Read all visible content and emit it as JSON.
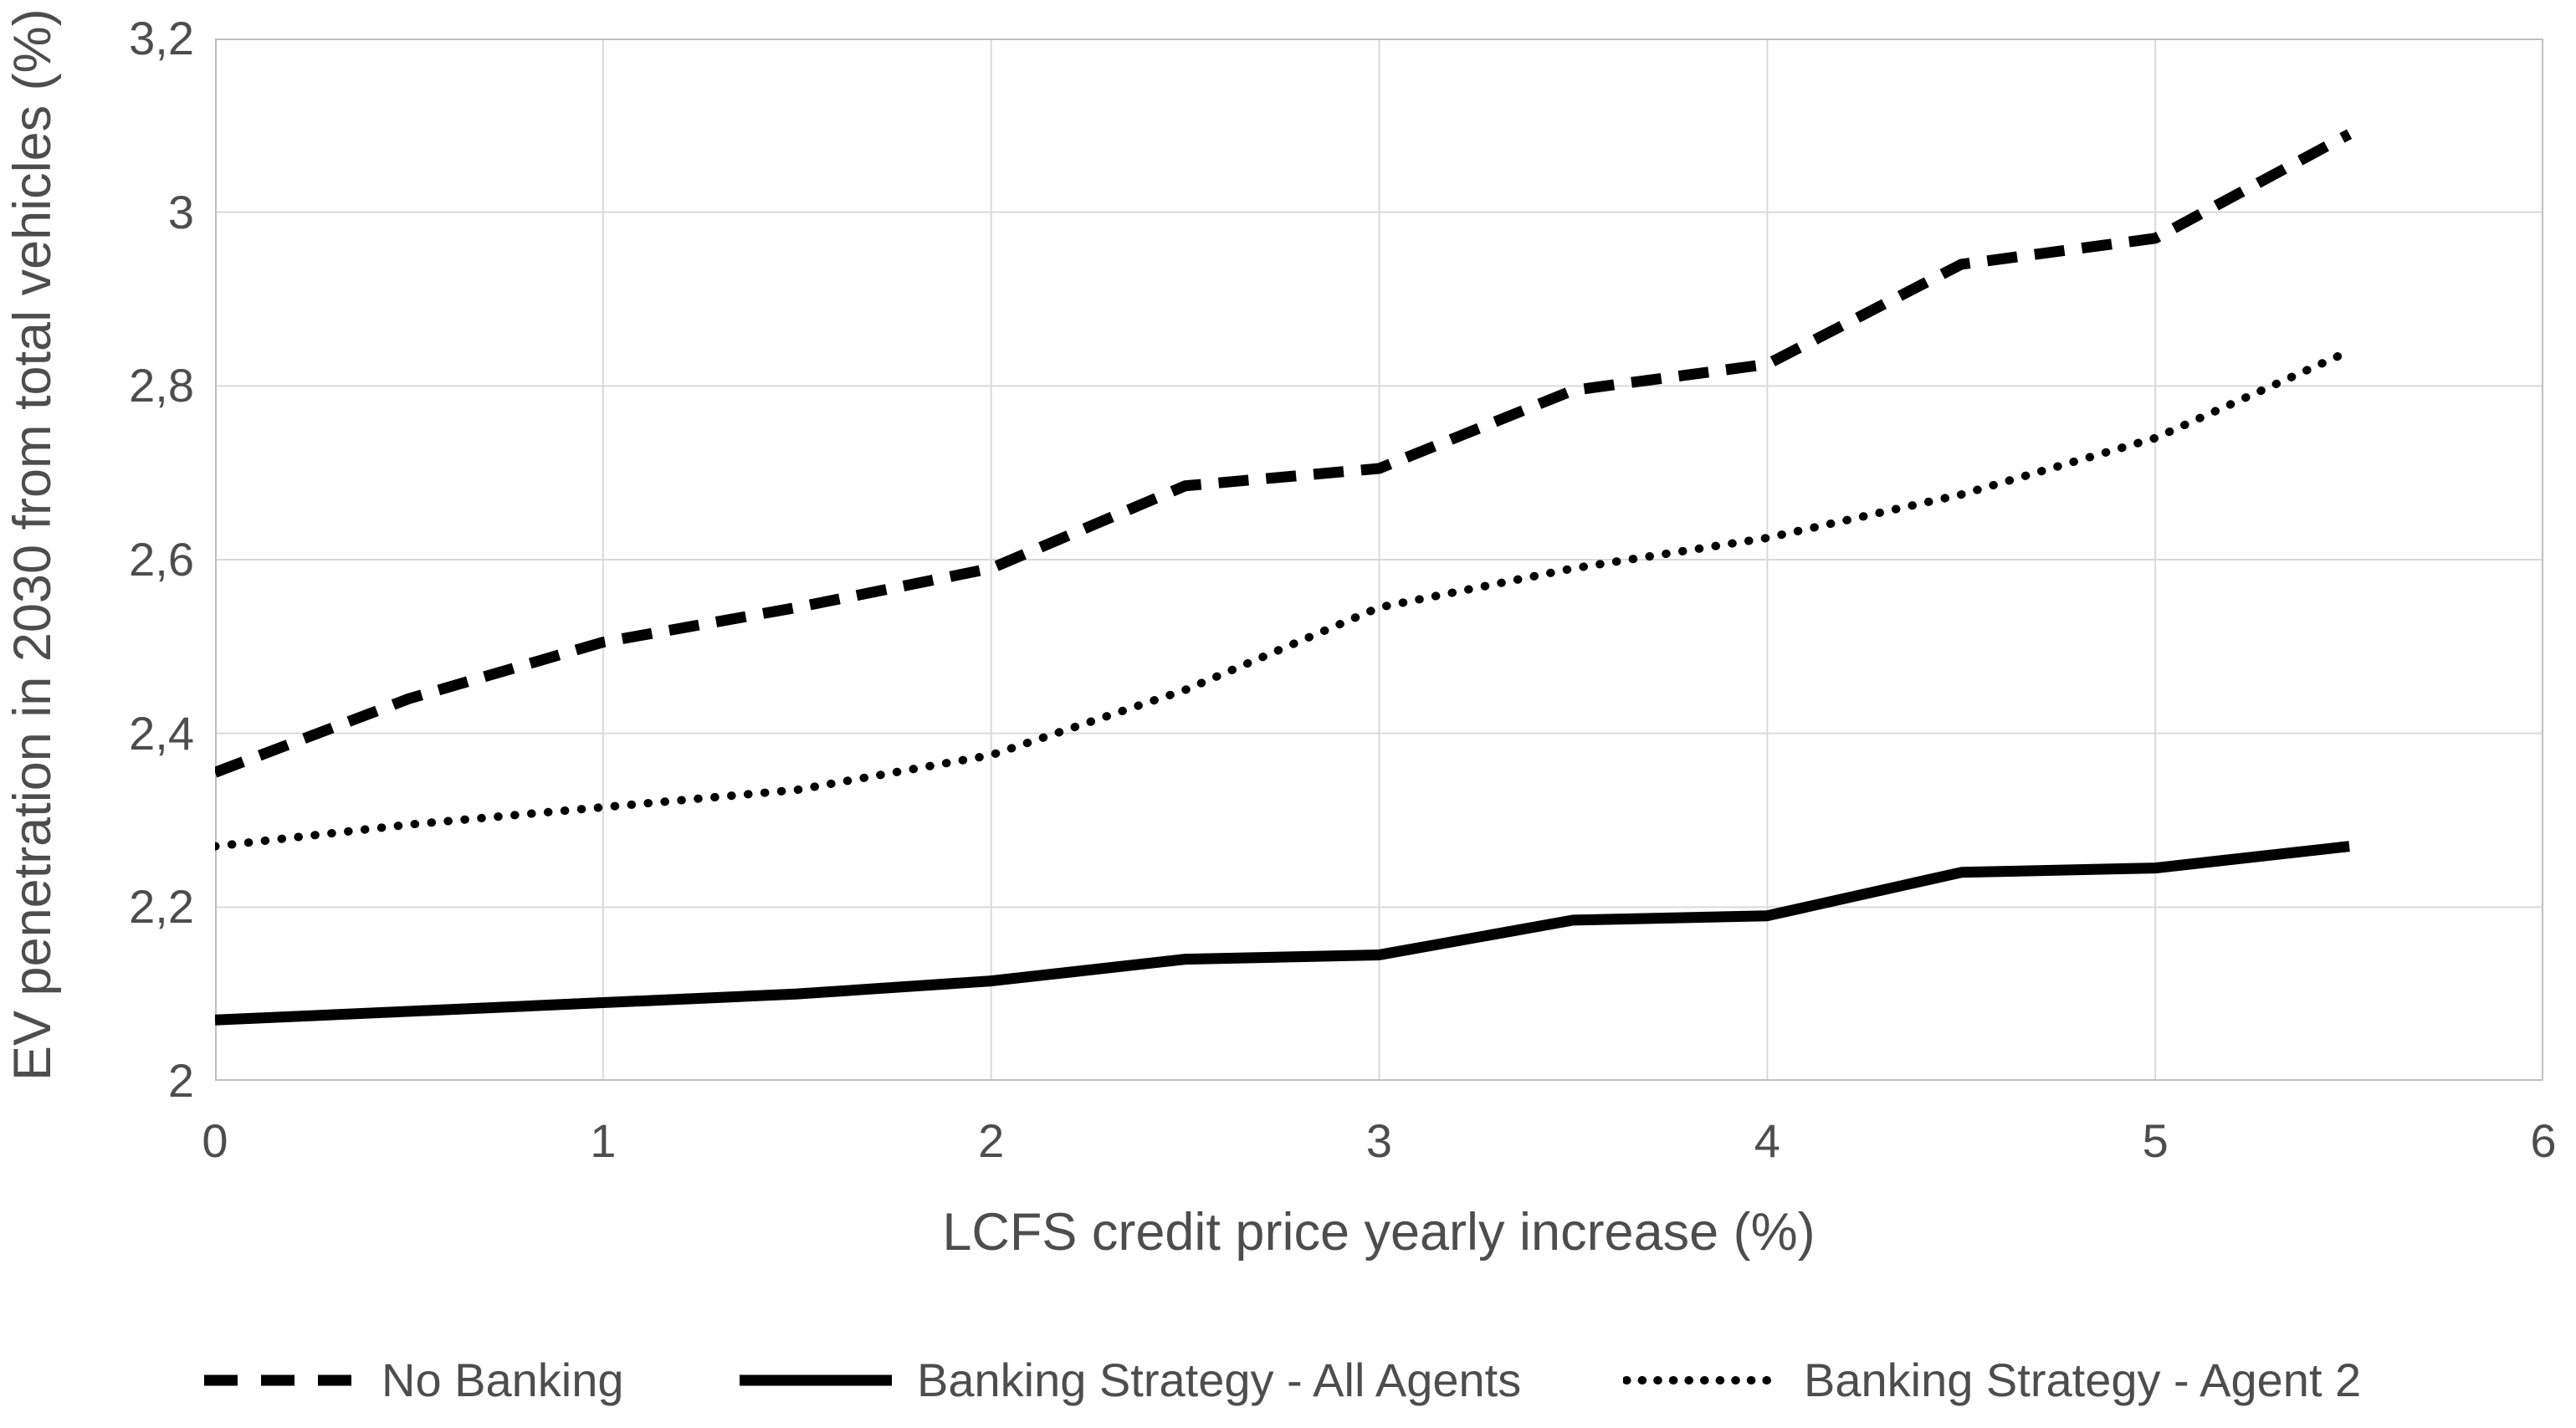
{
  "chart_data": {
    "type": "line",
    "title": "",
    "xlabel": "LCFS credit price yearly increase (%)",
    "ylabel": "EV penetration in 2030 from total vehicles (%)",
    "xlim": [
      0,
      6
    ],
    "ylim": [
      2.0,
      3.2
    ],
    "x_tick_labels": [
      "0",
      "1",
      "2",
      "3",
      "4",
      "5",
      "6"
    ],
    "y_tick_labels": [
      "2",
      "2,2",
      "2,4",
      "2,6",
      "2,8",
      "3",
      "3,2"
    ],
    "decimal_separator": ",",
    "grid": true,
    "legend_position": "bottom",
    "x": [
      0,
      0.5,
      1,
      1.5,
      2,
      2.5,
      3,
      3.5,
      4,
      4.5,
      5,
      5.5
    ],
    "series": [
      {
        "name": "No Banking",
        "line_style": "dashed",
        "color": "#000000",
        "values": [
          2.355,
          2.44,
          2.505,
          2.545,
          2.59,
          2.685,
          2.705,
          2.795,
          2.825,
          2.94,
          2.97,
          3.09
        ]
      },
      {
        "name": "Banking Strategy - All Agents",
        "line_style": "solid",
        "color": "#000000",
        "values": [
          2.07,
          2.08,
          2.09,
          2.1,
          2.115,
          2.14,
          2.145,
          2.185,
          2.19,
          2.24,
          2.245,
          2.27
        ]
      },
      {
        "name": "Banking Strategy - Agent 2",
        "line_style": "dotted",
        "color": "#000000",
        "values": [
          2.27,
          2.295,
          2.315,
          2.335,
          2.375,
          2.45,
          2.545,
          2.59,
          2.625,
          2.675,
          2.74,
          2.84
        ]
      }
    ]
  },
  "colors": {
    "background": "#ffffff",
    "gridline": "#d9d9d9",
    "plot_border": "#bfbfbf",
    "axis_text": "#4d4d4d",
    "series": "#000000"
  }
}
